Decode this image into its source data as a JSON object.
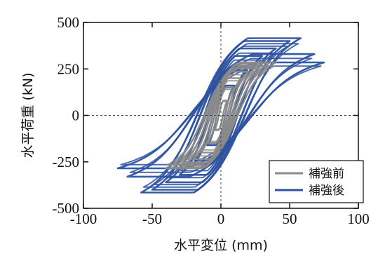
{
  "chart_data": {
    "type": "line",
    "title": "",
    "xlabel": "水平変位 (mm)",
    "ylabel": "水平荷重 (kN)",
    "xlim": [
      -100,
      100
    ],
    "ylim": [
      -500,
      500
    ],
    "x_ticks": [
      -100,
      -50,
      0,
      50,
      100
    ],
    "y_ticks": [
      -500,
      -250,
      0,
      250,
      500
    ],
    "x_tick_labels": [
      "-100",
      "-50",
      "0",
      "50",
      "100"
    ],
    "y_tick_labels": [
      "-500",
      "-250",
      "0",
      "250",
      "500"
    ],
    "grid": false,
    "zero_lines": true,
    "legend_position": "bottom-right",
    "series": [
      {
        "name": "補強前",
        "color": "#8a8a8a",
        "loop_amplitudes": [
          {
            "d": 5,
            "p": 80
          },
          {
            "d": 10,
            "p": 150
          },
          {
            "d": 15,
            "p": 200
          },
          {
            "d": 20,
            "p": 235
          },
          {
            "d": 25,
            "p": 255
          },
          {
            "d": 30,
            "p": 270
          },
          {
            "d": 35,
            "p": 280
          },
          {
            "d": 40,
            "p": 285
          }
        ]
      },
      {
        "name": "補強後",
        "color": "#2d52a0",
        "loop_amplitudes": [
          {
            "d": 10,
            "p": 160
          },
          {
            "d": 20,
            "p": 260
          },
          {
            "d": 30,
            "p": 320
          },
          {
            "d": 40,
            "p": 360
          },
          {
            "d": 50,
            "p": 400
          },
          {
            "d": 58,
            "p": 415
          },
          {
            "d": 68,
            "p": 330
          },
          {
            "d": 75,
            "p": 285
          }
        ]
      }
    ]
  }
}
